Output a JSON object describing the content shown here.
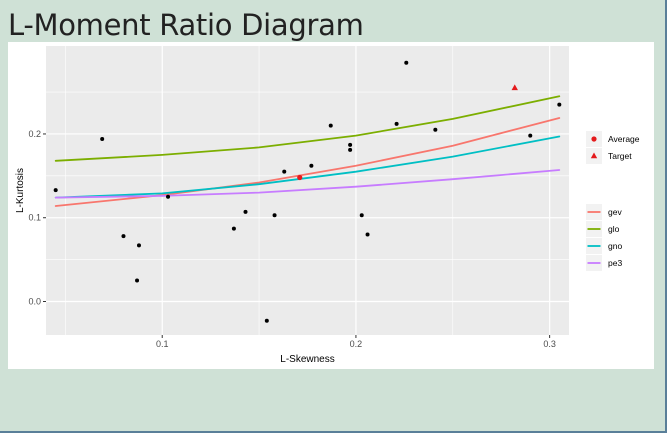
{
  "page": {
    "title": "L-Moment Ratio Diagram"
  },
  "colors": {
    "page_background": "#cfe1d6",
    "panel_background": "#ebebeb",
    "gridline": "#ffffff",
    "gev": "#f8766d",
    "glo": "#7cae00",
    "gno": "#00bfc4",
    "pe3": "#c77cff",
    "average": "#e41a1c",
    "target": "#e41a1c",
    "points": "#000000"
  },
  "legend": {
    "markers": [
      {
        "label": "Average",
        "shape": "circle"
      },
      {
        "label": "Target",
        "shape": "triangle"
      }
    ],
    "lines": [
      {
        "label": "gev"
      },
      {
        "label": "glo"
      },
      {
        "label": "gno"
      },
      {
        "label": "pe3"
      }
    ]
  },
  "chart_data": {
    "type": "scatter",
    "xlabel": "L-Skewness",
    "ylabel": "L-Kurtosis",
    "xlim": [
      0.04,
      0.31
    ],
    "ylim": [
      -0.04,
      0.305
    ],
    "xticks": [
      "0.1",
      "0.2",
      "0.3"
    ],
    "xtick_values": [
      0.1,
      0.2,
      0.3
    ],
    "yticks": [
      "0.0",
      "0.1",
      "0.2"
    ],
    "ytick_values": [
      0.0,
      0.1,
      0.2
    ],
    "legend_position": "right",
    "grid": true,
    "points": [
      {
        "x": 0.045,
        "y": 0.133
      },
      {
        "x": 0.069,
        "y": 0.194
      },
      {
        "x": 0.08,
        "y": 0.078
      },
      {
        "x": 0.087,
        "y": 0.025
      },
      {
        "x": 0.088,
        "y": 0.067
      },
      {
        "x": 0.103,
        "y": 0.125
      },
      {
        "x": 0.137,
        "y": 0.087
      },
      {
        "x": 0.143,
        "y": 0.107
      },
      {
        "x": 0.154,
        "y": -0.023
      },
      {
        "x": 0.158,
        "y": 0.103
      },
      {
        "x": 0.163,
        "y": 0.155
      },
      {
        "x": 0.177,
        "y": 0.162
      },
      {
        "x": 0.187,
        "y": 0.21
      },
      {
        "x": 0.197,
        "y": 0.187
      },
      {
        "x": 0.197,
        "y": 0.181
      },
      {
        "x": 0.203,
        "y": 0.103
      },
      {
        "x": 0.206,
        "y": 0.08
      },
      {
        "x": 0.221,
        "y": 0.212
      },
      {
        "x": 0.226,
        "y": 0.285
      },
      {
        "x": 0.241,
        "y": 0.205
      },
      {
        "x": 0.29,
        "y": 0.198
      },
      {
        "x": 0.305,
        "y": 0.235
      }
    ],
    "average": {
      "x": 0.171,
      "y": 0.148
    },
    "target": {
      "x": 0.282,
      "y": 0.255
    },
    "series": [
      {
        "name": "gev",
        "x": [
          0.045,
          0.1,
          0.15,
          0.2,
          0.25,
          0.305
        ],
        "y": [
          0.114,
          0.127,
          0.142,
          0.162,
          0.186,
          0.219
        ]
      },
      {
        "name": "glo",
        "x": [
          0.045,
          0.1,
          0.15,
          0.2,
          0.25,
          0.305
        ],
        "y": [
          0.168,
          0.175,
          0.184,
          0.198,
          0.218,
          0.245
        ]
      },
      {
        "name": "gno",
        "x": [
          0.045,
          0.1,
          0.15,
          0.2,
          0.25,
          0.305
        ],
        "y": [
          0.124,
          0.129,
          0.14,
          0.155,
          0.173,
          0.197
        ]
      },
      {
        "name": "pe3",
        "x": [
          0.045,
          0.1,
          0.15,
          0.2,
          0.25,
          0.305
        ],
        "y": [
          0.124,
          0.126,
          0.13,
          0.137,
          0.146,
          0.157
        ]
      }
    ]
  }
}
